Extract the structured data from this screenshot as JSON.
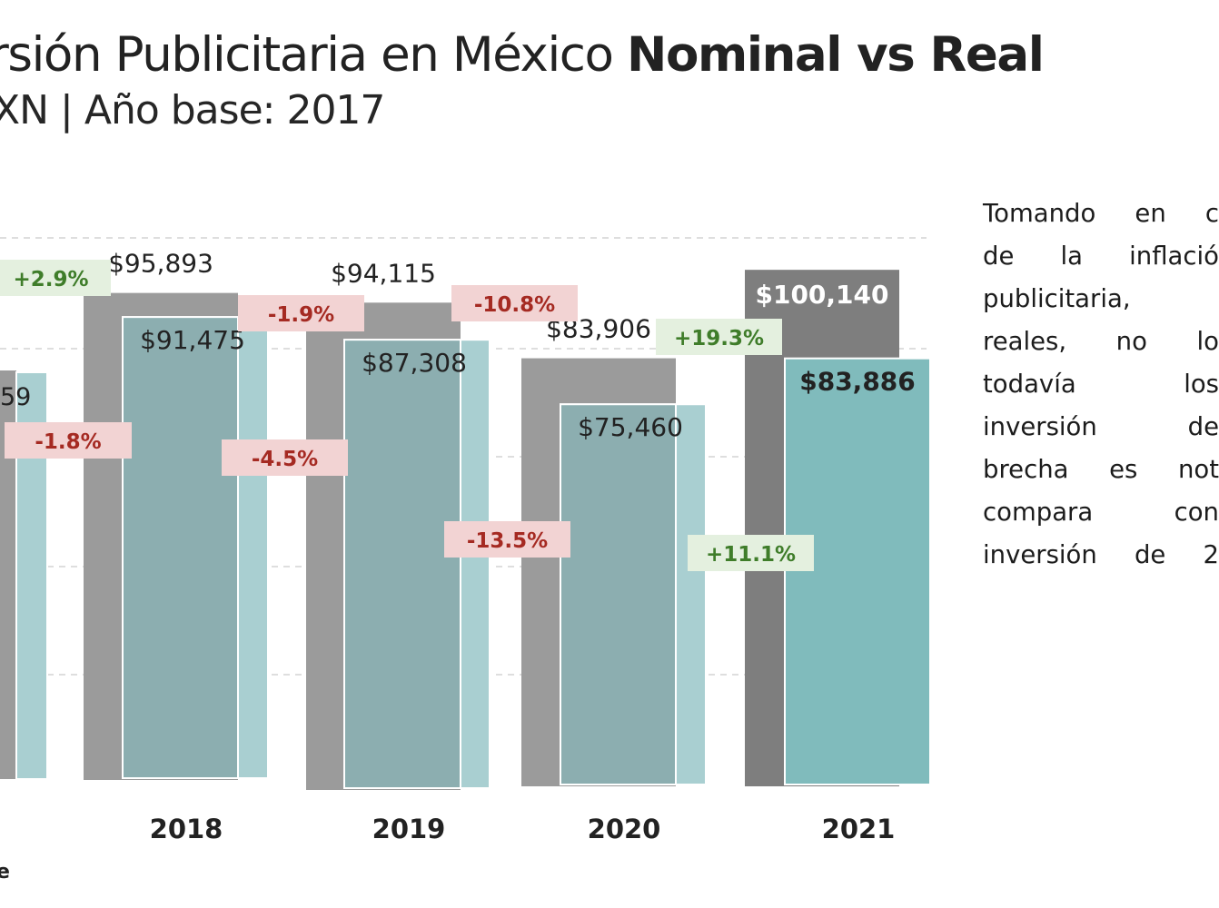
{
  "title": {
    "main": "rsión Publicitaria en México ",
    "highlight": "Nominal vs Real"
  },
  "subtitle": "XN | Año base: 2017",
  "footnote": "e",
  "note": {
    "lines": [
      "Tomando en c",
      "de la inflació",
      "publicitaria,",
      "reales, no lo",
      "todavía los",
      "inversión de",
      "brecha es not",
      "compara con",
      "inversión de 2"
    ]
  },
  "colors": {
    "nominal": "#9b9b9b",
    "nominal_highlight": "#7e7e7e",
    "real": "#8caeb0",
    "real_light": "#a9cfd1",
    "real_highlight": "#80bbbc",
    "positive_bg": "#e4f0df",
    "positive_text": "#3f7d2a",
    "negative_bg": "#f2d3d3",
    "negative_text": "#a52a22",
    "grid": "#d4d4d4"
  },
  "chart_data": {
    "type": "bar",
    "title": "",
    "xlabel": "",
    "ylabel": "",
    "grid": true,
    "categories": [
      "",
      "2018",
      "2019",
      "2020",
      "2021"
    ],
    "series": [
      {
        "name": "",
        "values": [
          null,
          95893,
          94115,
          83906,
          100140
        ],
        "labels": [
          "",
          "$95,893",
          "$94,115",
          "$83,906",
          "$100,140"
        ]
      },
      {
        "name": "",
        "values": [
          null,
          91475,
          87308,
          75460,
          83886
        ],
        "labels": [
          "59",
          "$91,475",
          "$87,308",
          "$75,460",
          "$83,886"
        ]
      }
    ],
    "annotations": [
      {
        "text": "+2.9%",
        "sign": "positive"
      },
      {
        "text": "-1.8%",
        "sign": "negative"
      },
      {
        "text": "-1.9%",
        "sign": "negative"
      },
      {
        "text": "-4.5%",
        "sign": "negative"
      },
      {
        "text": "-10.8%",
        "sign": "negative"
      },
      {
        "text": "-13.5%",
        "sign": "negative"
      },
      {
        "text": "+19.3%",
        "sign": "positive"
      },
      {
        "text": "+11.1%",
        "sign": "positive"
      }
    ]
  }
}
